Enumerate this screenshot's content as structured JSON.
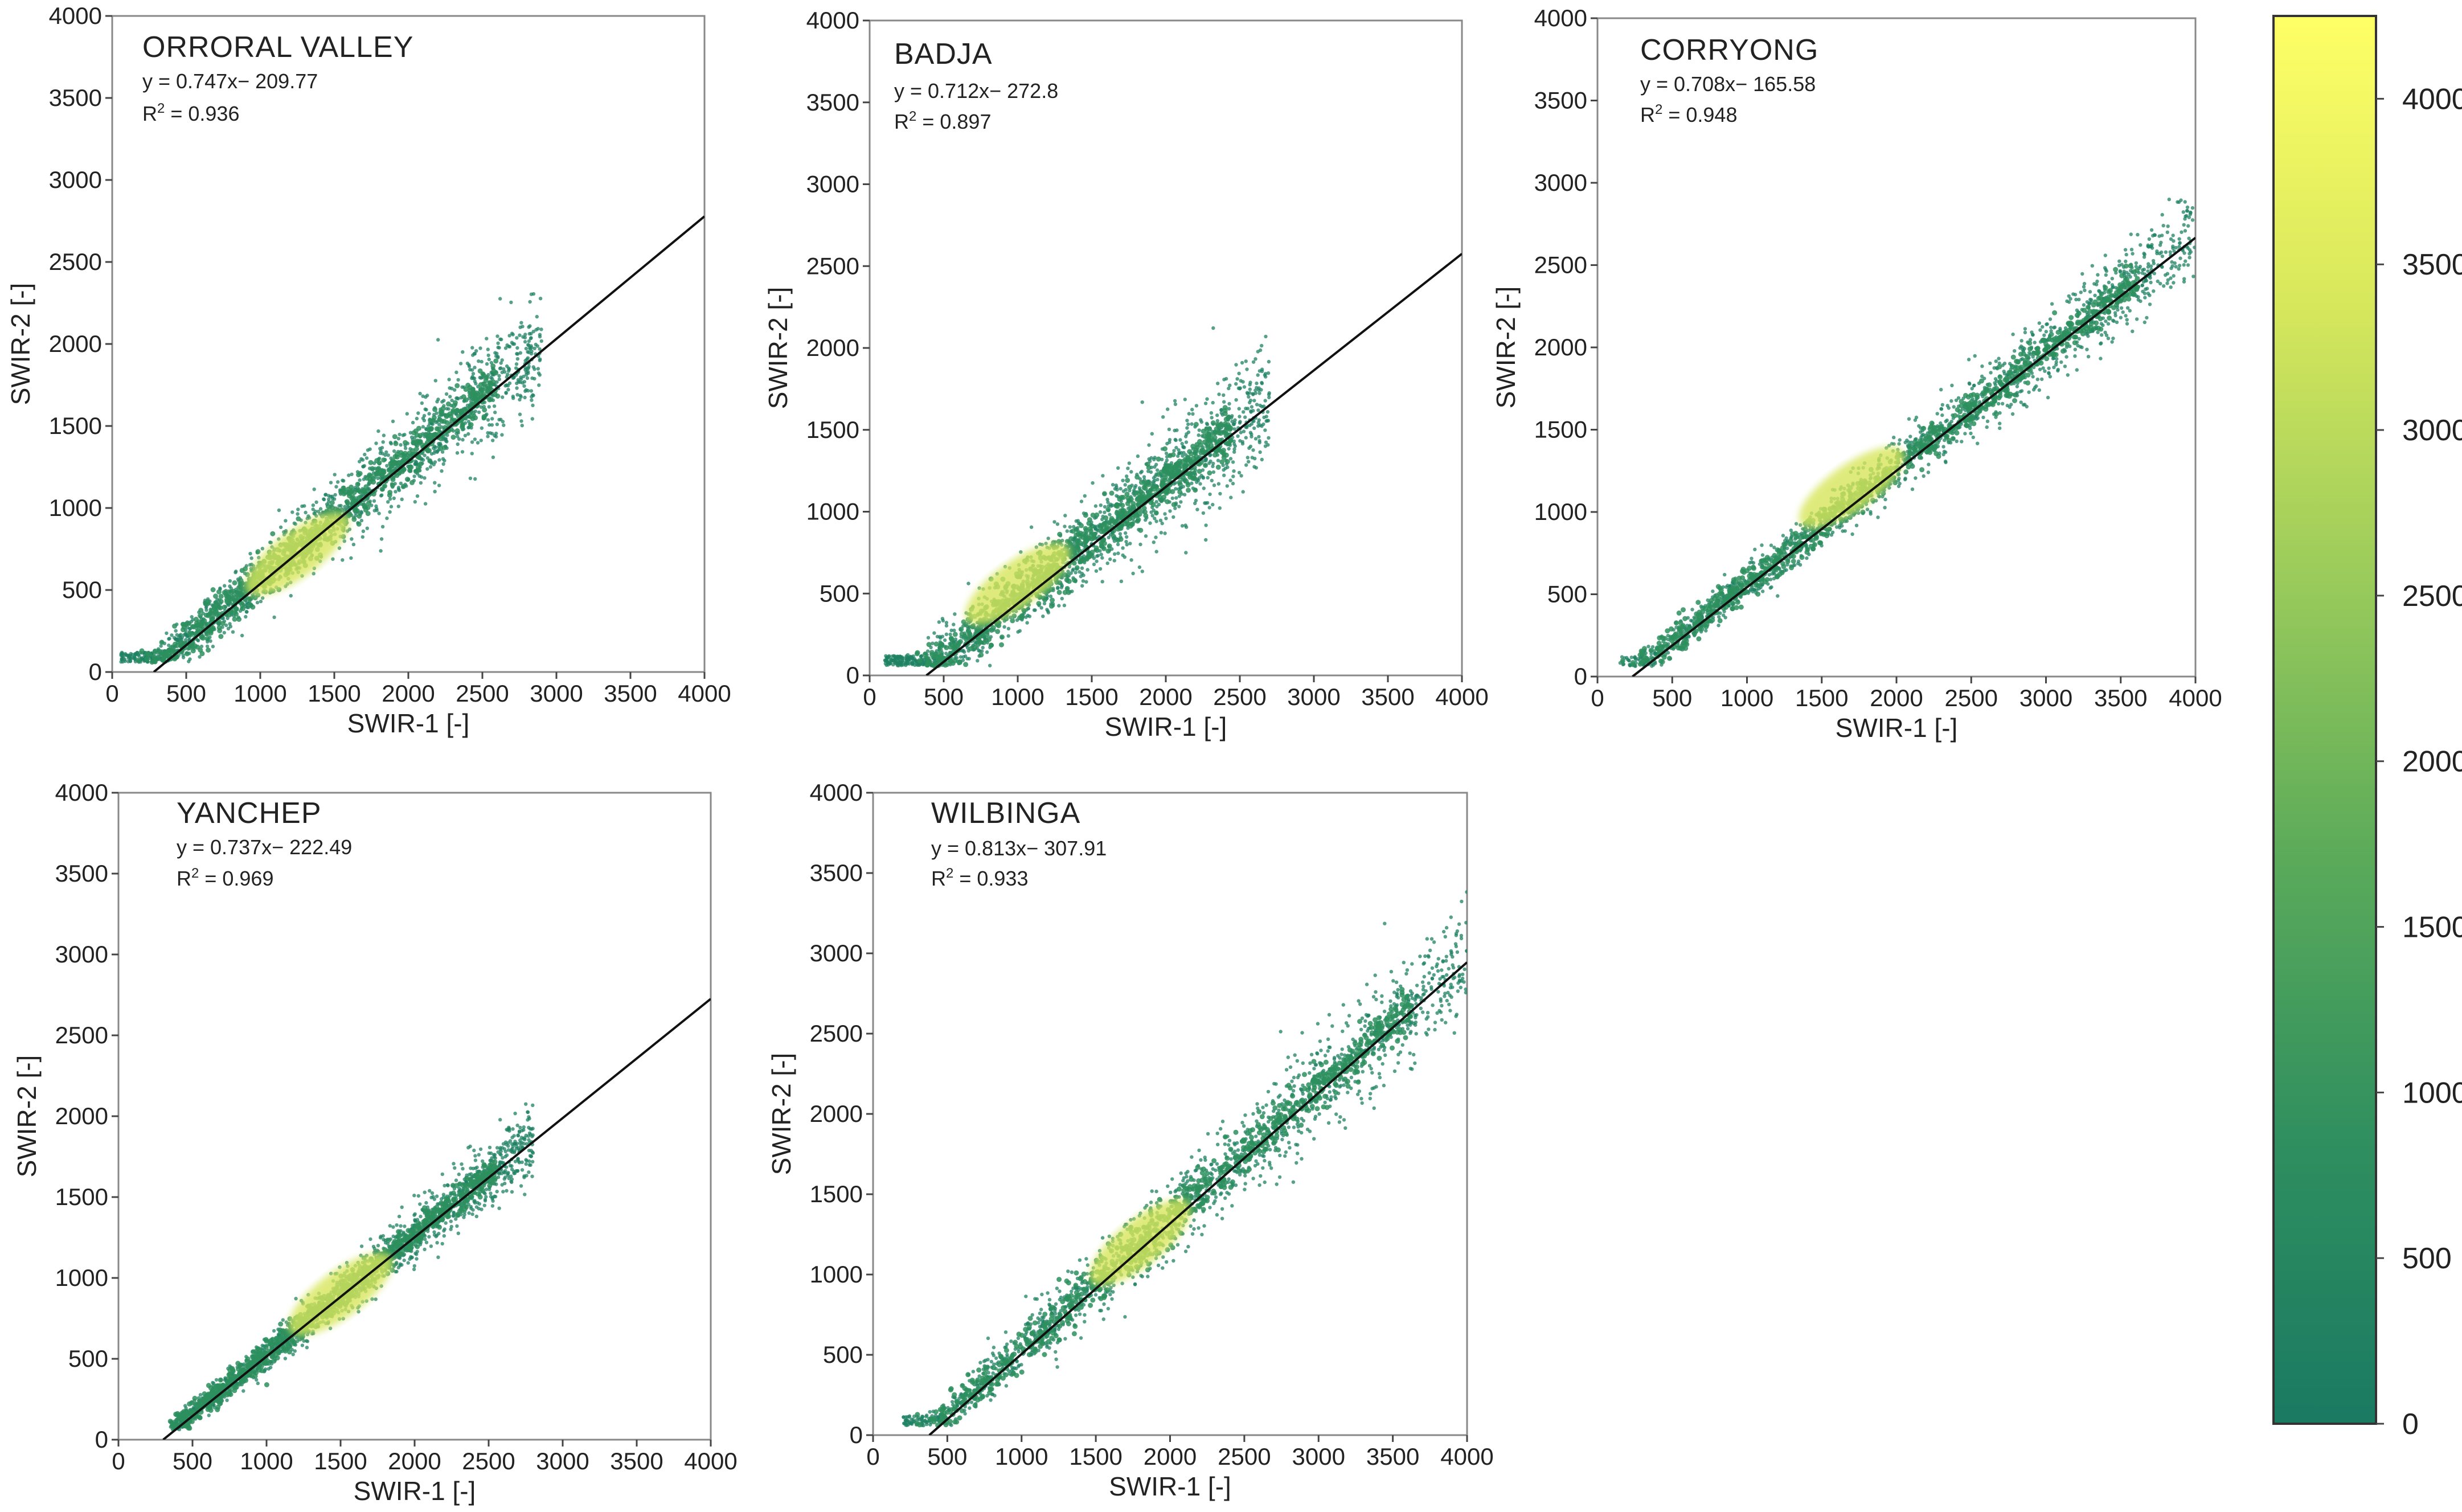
{
  "chart_data": [
    {
      "type": "scatter",
      "title": "ORRORAL VALLEY",
      "equation": "y = 0.747x− 209.77",
      "r2_label": "R",
      "r2_sup": "2",
      "r2_value": " = 0.936",
      "slope": 0.747,
      "intercept": -209.77,
      "xlabel": "SWIR-1 [-]",
      "ylabel": "SWIR-2 [-]",
      "xlim": [
        0,
        4000
      ],
      "ylim": [
        0,
        4000
      ],
      "xticks": [
        "0",
        "500",
        "1000",
        "1500",
        "2000",
        "2500",
        "3000",
        "3500",
        "4000"
      ],
      "yticks": [
        "0",
        "500",
        "1000",
        "1500",
        "2000",
        "2500",
        "3000",
        "3500",
        "4000"
      ],
      "density_band": {
        "x_start": 50,
        "x_end": 2900,
        "spread": 260
      },
      "density_peak": {
        "x": 1250,
        "y": 720
      }
    },
    {
      "type": "scatter",
      "title": "BADJA",
      "equation": "y = 0.712x− 272.8",
      "r2_label": "R",
      "r2_sup": "2",
      "r2_value": " = 0.897",
      "slope": 0.712,
      "intercept": -272.8,
      "xlabel": "SWIR-1 [-]",
      "ylabel": "SWIR-2 [-]",
      "xlim": [
        0,
        4000
      ],
      "ylim": [
        0,
        4000
      ],
      "xticks": [
        "0",
        "500",
        "1000",
        "1500",
        "2000",
        "2500",
        "3000",
        "3500",
        "4000"
      ],
      "yticks": [
        "0",
        "500",
        "1000",
        "1500",
        "2000",
        "2500",
        "3000",
        "3500",
        "4000"
      ],
      "density_band": {
        "x_start": 100,
        "x_end": 2700,
        "spread": 300
      },
      "density_peak": {
        "x": 1000,
        "y": 560
      }
    },
    {
      "type": "scatter",
      "title": "CORRYONG",
      "equation": "y = 0.708x− 165.58",
      "r2_label": "R",
      "r2_sup": "2",
      "r2_value": " = 0.948",
      "slope": 0.708,
      "intercept": -165.58,
      "xlabel": "SWIR-1 [-]",
      "ylabel": "SWIR-2 [-]",
      "xlim": [
        0,
        4000
      ],
      "ylim": [
        0,
        4000
      ],
      "xticks": [
        "0",
        "500",
        "1000",
        "1500",
        "2000",
        "2500",
        "3000",
        "3500",
        "4000"
      ],
      "yticks": [
        "0",
        "500",
        "1000",
        "1500",
        "2000",
        "2500",
        "3000",
        "3500",
        "4000"
      ],
      "density_band": {
        "x_start": 150,
        "x_end": 4000,
        "spread": 200
      },
      "density_peak": {
        "x": 1700,
        "y": 1150
      }
    },
    {
      "type": "scatter",
      "title": "YANCHEP",
      "equation": "y = 0.737x− 222.49",
      "r2_label": "R",
      "r2_sup": "2",
      "r2_value": " = 0.969",
      "slope": 0.737,
      "intercept": -222.49,
      "xlabel": "SWIR-1 [-]",
      "ylabel": "SWIR-2 [-]",
      "xlim": [
        0,
        4000
      ],
      "ylim": [
        0,
        4000
      ],
      "xticks": [
        "0",
        "500",
        "1000",
        "1500",
        "2000",
        "2500",
        "3000",
        "3500",
        "4000"
      ],
      "yticks": [
        "0",
        "500",
        "1000",
        "1500",
        "2000",
        "2500",
        "3000",
        "3500",
        "4000"
      ],
      "density_band": {
        "x_start": 350,
        "x_end": 2800,
        "spread": 160
      },
      "density_peak": {
        "x": 1500,
        "y": 900
      }
    },
    {
      "type": "scatter",
      "title": "WILBINGA",
      "equation": "y = 0.813x− 307.91",
      "r2_label": "R",
      "r2_sup": "2",
      "r2_value": " = 0.933",
      "slope": 0.813,
      "intercept": -307.91,
      "xlabel": "SWIR-1 [-]",
      "ylabel": "SWIR-2 [-]",
      "xlim": [
        0,
        4000
      ],
      "ylim": [
        0,
        4000
      ],
      "xticks": [
        "0",
        "500",
        "1000",
        "1500",
        "2000",
        "2500",
        "3000",
        "3500",
        "4000"
      ],
      "yticks": [
        "0",
        "500",
        "1000",
        "1500",
        "2000",
        "2500",
        "3000",
        "3500",
        "4000"
      ],
      "density_band": {
        "x_start": 200,
        "x_end": 4000,
        "spread": 280
      },
      "density_peak": {
        "x": 1800,
        "y": 1200
      }
    }
  ],
  "colorbar": {
    "min": 0,
    "max": 4250,
    "ticks": [
      "0",
      "500",
      "1000",
      "1500",
      "2000",
      "2500",
      "3000",
      "3500",
      "4000"
    ],
    "colors": [
      "#1a7a62",
      "#2f8f5f",
      "#5aaa5a",
      "#9acb5b",
      "#d8e85c",
      "#ffff66"
    ]
  }
}
